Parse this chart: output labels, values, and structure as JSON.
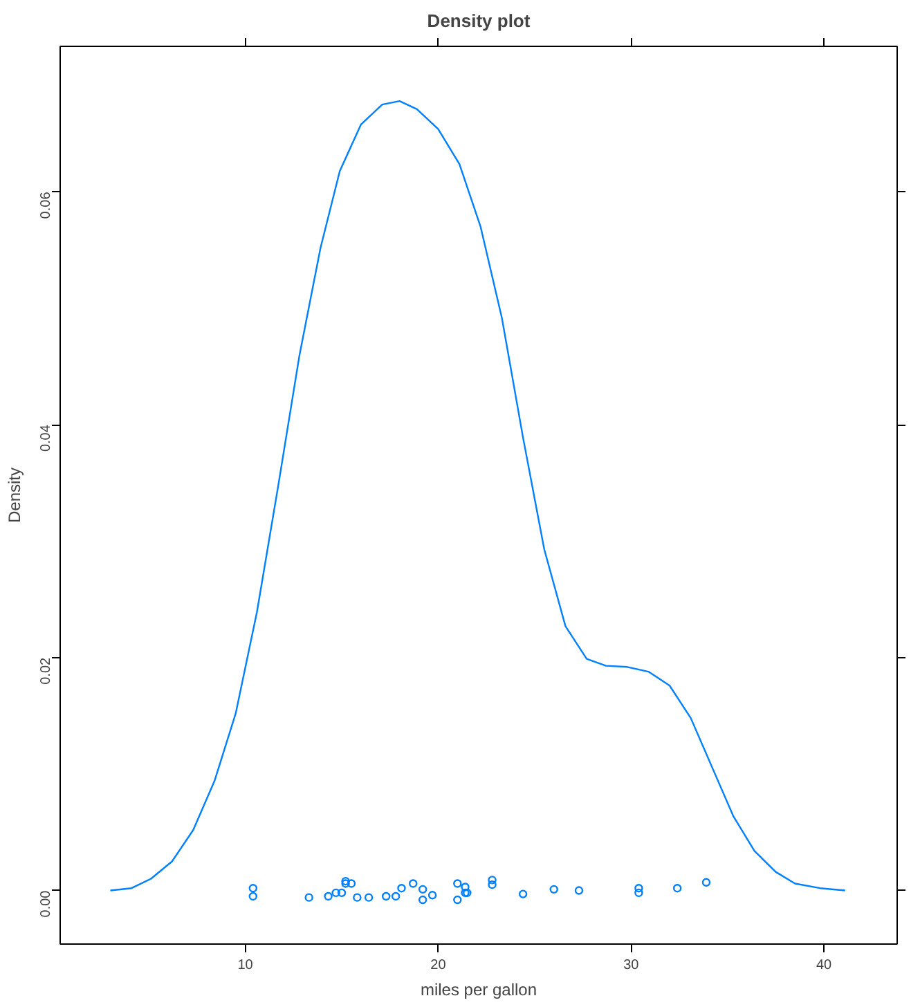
{
  "chart_data": {
    "type": "line",
    "title": "Density plot",
    "xlabel": "miles per gallon",
    "ylabel": "Density",
    "xlim": [
      0.4,
      43.8
    ],
    "ylim": [
      -0.0046,
      0.0725
    ],
    "xticks": [
      10,
      20,
      30,
      40
    ],
    "yticks": [
      {
        "value": 0,
        "label": "0.00"
      },
      {
        "value": 0.02,
        "label": "0.02"
      },
      {
        "value": 0.04,
        "label": "0.04"
      },
      {
        "value": 0.06,
        "label": "0.06"
      }
    ],
    "grid": false,
    "series": [
      {
        "color": "#0080ff",
        "marker": "none",
        "line_style": "solid",
        "x": [
          3.0,
          4.1,
          5.1,
          6.2,
          7.3,
          8.4,
          9.5,
          10.6,
          11.7,
          12.8,
          13.9,
          14.9,
          16.0,
          17.1,
          18.0,
          18.9,
          20.0,
          21.1,
          22.2,
          23.3,
          24.4,
          25.5,
          26.6,
          27.7,
          28.7,
          29.8,
          30.9,
          32.0,
          33.1,
          34.2,
          35.3,
          36.4,
          37.5,
          38.5,
          39.8,
          41.1
        ],
        "values": [
          0.0,
          0.0002,
          0.001,
          0.0025,
          0.0052,
          0.0094,
          0.0152,
          0.0239,
          0.0347,
          0.0459,
          0.0552,
          0.0618,
          0.0658,
          0.0675,
          0.0678,
          0.0671,
          0.0654,
          0.0624,
          0.057,
          0.0492,
          0.0389,
          0.0293,
          0.0227,
          0.0199,
          0.0193,
          0.0192,
          0.0188,
          0.0176,
          0.0148,
          0.0106,
          0.0064,
          0.0034,
          0.0016,
          0.0006,
          0.0002,
          0.0
        ]
      },
      {
        "type": "scatter",
        "color": "#0080ff",
        "marker": "circle",
        "x": [
          10.4,
          10.4,
          13.3,
          14.3,
          14.7,
          15.0,
          15.2,
          15.2,
          15.5,
          15.8,
          16.4,
          17.3,
          17.8,
          18.1,
          18.7,
          19.2,
          19.2,
          19.7,
          21.0,
          21.0,
          21.4,
          21.4,
          21.5,
          22.8,
          22.8,
          24.4,
          26.0,
          27.3,
          30.4,
          30.4,
          32.4,
          33.9
        ],
        "values": [
          0.0002,
          -0.0005,
          -0.0006,
          -0.0005,
          -0.0002,
          -0.0002,
          0.0008,
          0.0006,
          0.0006,
          -0.0006,
          -0.0006,
          -0.0005,
          -0.0005,
          0.0002,
          0.0006,
          0.0001,
          -0.0008,
          -0.0004,
          0.0006,
          -0.0008,
          0.0003,
          -0.0002,
          -0.0002,
          0.0009,
          0.0005,
          -0.0003,
          0.0001,
          0.0,
          0.0002,
          -0.0002,
          0.0002,
          0.0007
        ]
      }
    ]
  }
}
